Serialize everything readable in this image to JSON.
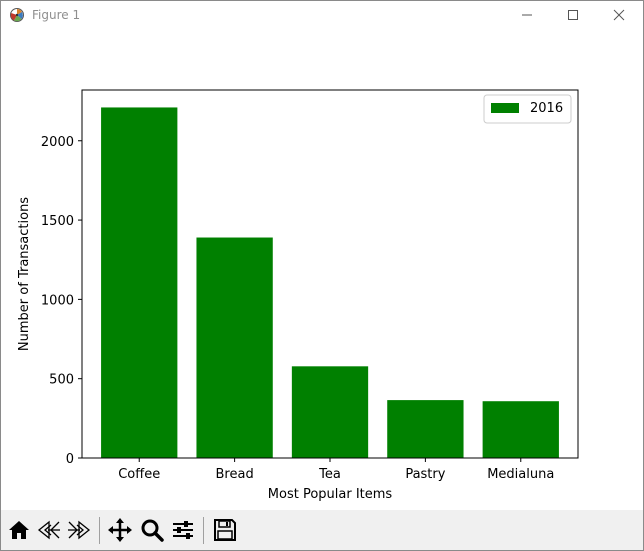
{
  "window": {
    "title": "Figure 1",
    "icons": [
      "matplotlib-icon",
      "minimize-icon",
      "maximize-icon",
      "close-icon"
    ]
  },
  "chart_data": {
    "type": "bar",
    "categories": [
      "Coffee",
      "Bread",
      "Tea",
      "Pastry",
      "Medialuna"
    ],
    "series": [
      {
        "name": "2016",
        "values": [
          2210,
          1390,
          578,
          365,
          358
        ],
        "color": "#008000"
      }
    ],
    "xlabel": "Most Popular Items",
    "ylabel": "Number of Transactions",
    "ylim": [
      0,
      2320
    ],
    "yticks": [
      0,
      500,
      1000,
      1500,
      2000
    ],
    "legend_placement": "top-right",
    "grid": false
  },
  "toolbar": {
    "icons": [
      "home-icon",
      "back-icon",
      "forward-icon",
      "pan-icon",
      "zoom-icon",
      "configure-subplots-icon",
      "save-icon"
    ]
  }
}
